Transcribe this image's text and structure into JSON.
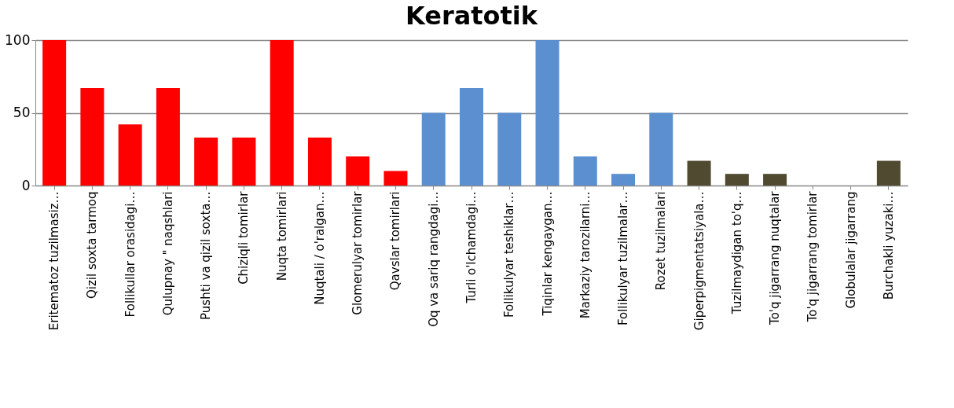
{
  "chart_data": {
    "type": "bar",
    "title": "Keratotik",
    "categories": [
      "Eritematoz tuzilmasiz…",
      "Qizil soxta tarmoq",
      "Follikullar orasidagi…",
      "Qulupnay \" naqshlari",
      "Pushti va qizil soxta…",
      "Chiziqli tomirlar",
      "Nuqta tomirlari",
      "Nuqtali / o'ralgan…",
      "Glomerulyar tomirlar",
      "Qavslar tomirlari",
      "Oq va sariq rangdagi…",
      "Turli o'lchamdagi…",
      "Follikulyar teshiklar…",
      "Tiqinlar kengaygan…",
      "Markaziy tarozilarni…",
      "Follikulyar tuzilmalar…",
      "Rozet tuzilmalari",
      "Giperpigmentatsiyala…",
      "Tuzilmaydigan to'q…",
      "To'q jigarrang nuqtalar",
      "To'q jigarrang tomirlar",
      "Globulalar jigarrang",
      "Burchakli yuzaki…"
    ],
    "values": [
      100,
      67,
      42,
      67,
      33,
      33,
      100,
      33,
      20,
      10,
      50,
      67,
      50,
      100,
      20,
      8,
      50,
      17,
      8,
      8,
      0,
      0,
      17
    ],
    "colors": [
      "#ff0000",
      "#ff0000",
      "#ff0000",
      "#ff0000",
      "#ff0000",
      "#ff0000",
      "#ff0000",
      "#ff0000",
      "#ff0000",
      "#ff0000",
      "#5b8fd0",
      "#5b8fd0",
      "#5b8fd0",
      "#5b8fd0",
      "#5b8fd0",
      "#5b8fd0",
      "#5b8fd0",
      "#4f4a30",
      "#4f4a30",
      "#4f4a30",
      "#5b8fd0",
      "#5b8fd0",
      "#4f4a30"
    ],
    "ylim": [
      0,
      100
    ],
    "yticks": [
      0,
      50,
      100
    ],
    "grid": "y",
    "legend": false
  }
}
